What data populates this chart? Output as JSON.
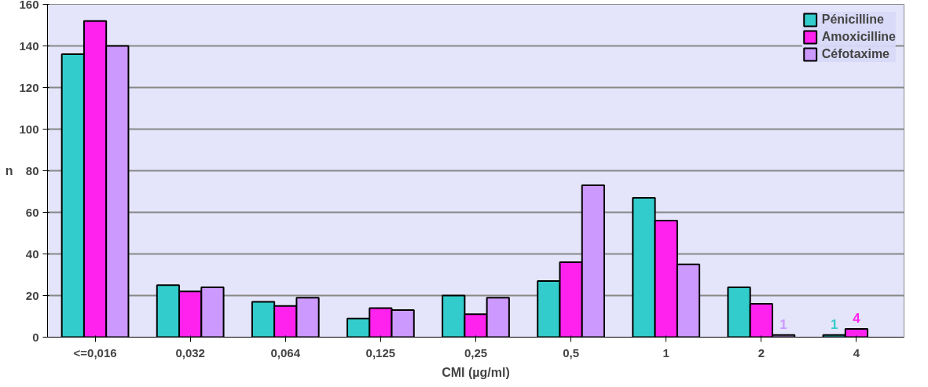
{
  "chart_data": {
    "type": "bar",
    "xlabel": "CMI (µg/ml)",
    "ylabel": "n",
    "categories": [
      "<=0,016",
      "0,032",
      "0,064",
      "0,125",
      "0,25",
      "0,5",
      "1",
      "2",
      "4"
    ],
    "series": [
      {
        "name": "Pénicilline",
        "color": "#33cccc",
        "values": [
          136,
          25,
          17,
          9,
          20,
          27,
          67,
          24,
          1
        ],
        "value_labels": [
          null,
          null,
          null,
          null,
          null,
          null,
          null,
          null,
          "1"
        ]
      },
      {
        "name": "Amoxicilline",
        "color": "#ff22ee",
        "values": [
          152,
          22,
          15,
          14,
          11,
          36,
          56,
          16,
          4
        ],
        "value_labels": [
          null,
          null,
          null,
          null,
          null,
          null,
          null,
          null,
          "4"
        ]
      },
      {
        "name": "Céfotaxime",
        "color": "#cc99ff",
        "values": [
          140,
          24,
          19,
          13,
          19,
          73,
          35,
          1,
          null
        ],
        "value_labels": [
          null,
          null,
          null,
          null,
          null,
          null,
          null,
          "1",
          null
        ]
      }
    ],
    "ylim": [
      0,
      160
    ],
    "yticks": [
      0,
      20,
      40,
      60,
      80,
      100,
      120,
      140,
      160
    ],
    "grid": "y",
    "legend": "top right"
  }
}
